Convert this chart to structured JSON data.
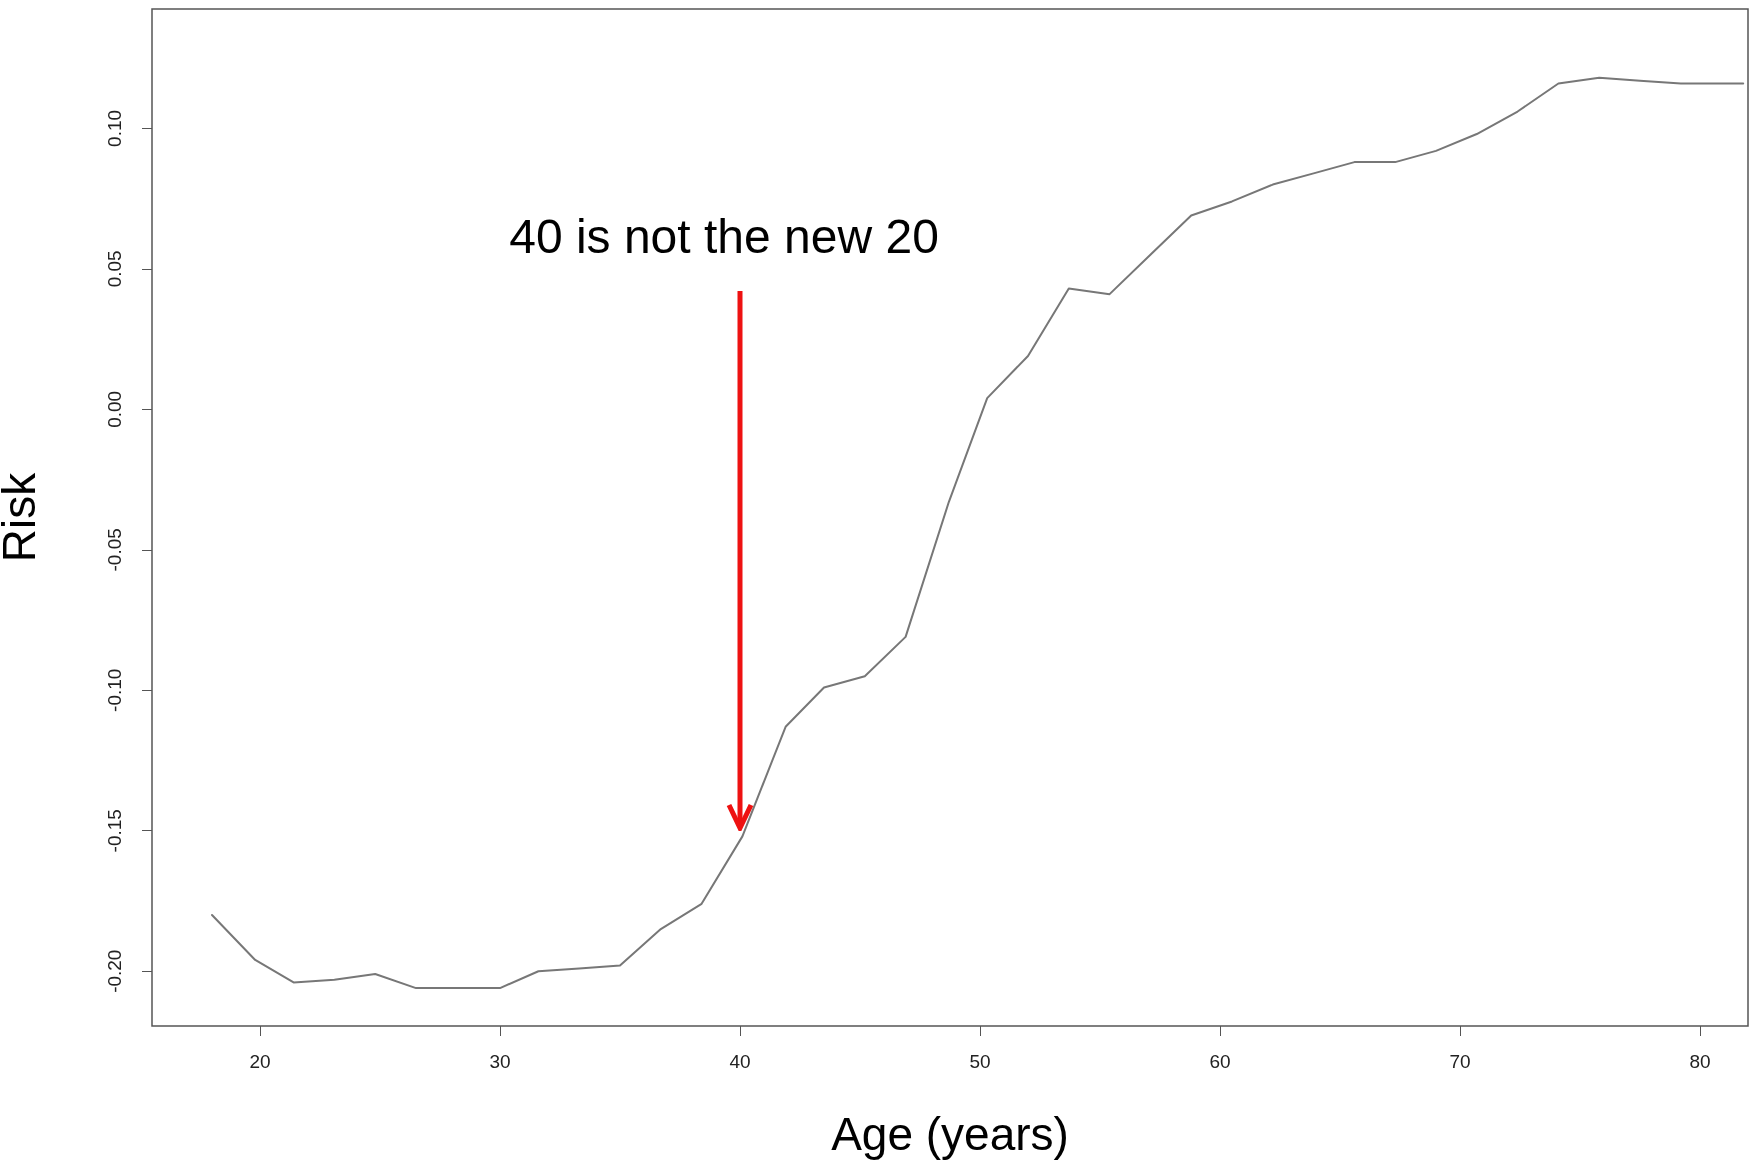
{
  "chart_data": {
    "type": "line",
    "xlabel": "Age (years)",
    "ylabel": "Risk",
    "x": [
      18.0,
      19.8,
      21.4,
      23.1,
      24.8,
      26.5,
      28.2,
      30.0,
      31.6,
      33.3,
      35.0,
      36.7,
      38.4,
      40.1,
      41.9,
      43.5,
      45.2,
      46.9,
      48.7,
      50.3,
      52.0,
      53.7,
      55.4,
      57.1,
      58.8,
      60.5,
      62.2,
      63.9,
      65.6,
      67.3,
      69.0,
      70.7,
      72.4,
      74.1,
      75.8,
      77.5,
      79.2,
      81.8
    ],
    "series": [
      {
        "color": "#777777",
        "values": [
          -0.18,
          -0.196,
          -0.204,
          -0.203,
          -0.201,
          -0.206,
          -0.206,
          -0.206,
          -0.2,
          -0.199,
          -0.198,
          -0.185,
          -0.176,
          -0.152,
          -0.113,
          -0.099,
          -0.095,
          -0.081,
          -0.033,
          0.004,
          0.019,
          0.043,
          0.041,
          0.055,
          0.069,
          0.074,
          0.08,
          0.084,
          0.088,
          0.088,
          0.092,
          0.098,
          0.106,
          0.116,
          0.118,
          0.117,
          0.116,
          0.116
        ]
      }
    ],
    "xlim": [
      15.5,
      82
    ],
    "ylim": [
      -0.2195,
      0.1425
    ],
    "xticks": [
      20,
      30,
      40,
      50,
      60,
      70,
      80
    ],
    "yticks": [
      {
        "value": -0.2,
        "label": "-0.20"
      },
      {
        "value": -0.15,
        "label": "-0.15"
      },
      {
        "value": -0.1,
        "label": "-0.10"
      },
      {
        "value": -0.05,
        "label": "-0.05"
      },
      {
        "value": 0,
        "label": "0.00"
      },
      {
        "value": 0.05,
        "label": "0.05"
      },
      {
        "value": 0.1,
        "label": "0.10"
      }
    ],
    "annotations": [
      {
        "text": "40 is not the new 20",
        "x": 40,
        "y": -0.15
      }
    ],
    "grid": false,
    "marker": "none",
    "line_style": "solid"
  }
}
